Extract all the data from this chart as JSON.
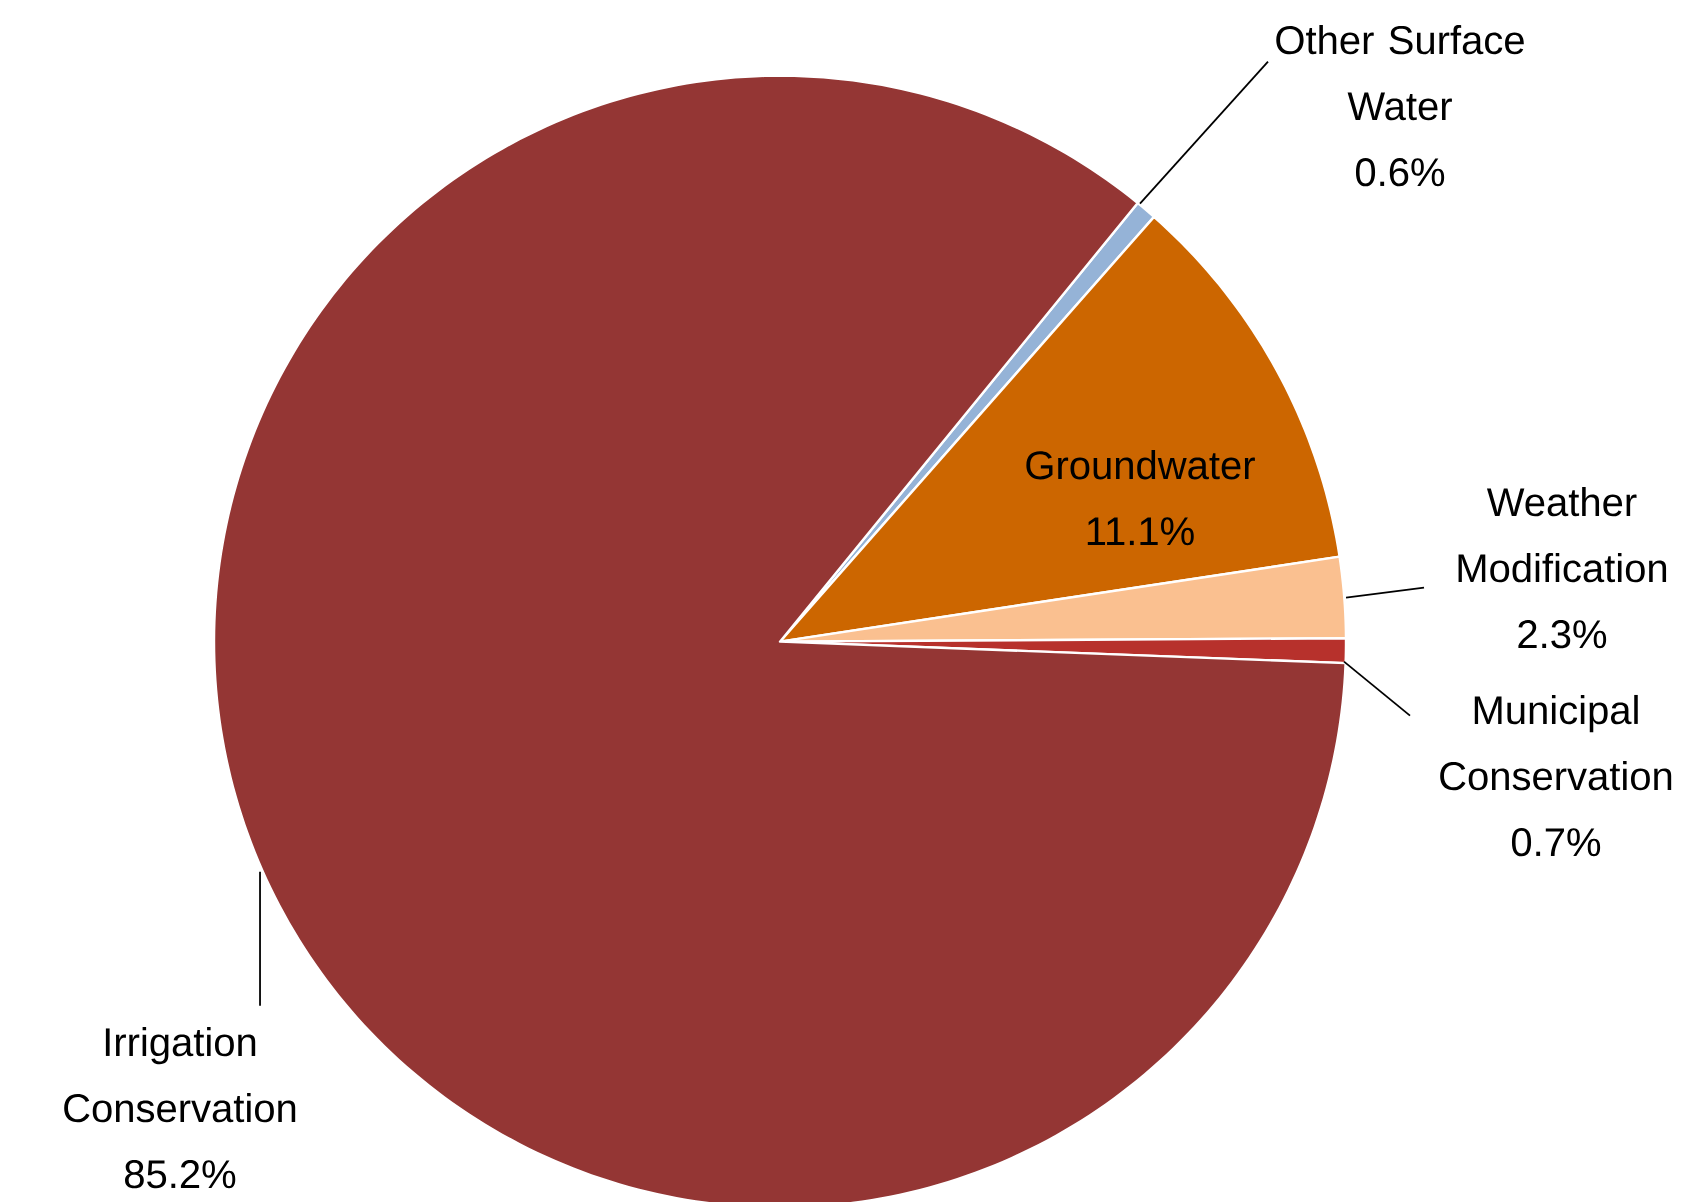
{
  "chart_data": {
    "type": "pie",
    "categories": [
      "Other Surface Water",
      "Groundwater",
      "Weather Modification",
      "Municipal Conservation",
      "Irrigation Conservation"
    ],
    "values": [
      0.6,
      11.1,
      2.3,
      0.7,
      85.2
    ],
    "value_labels": [
      "0.6%",
      "11.1%",
      "2.3%",
      "0.7%",
      "85.2%"
    ],
    "colors": [
      "#95b3d7",
      "#cc6600",
      "#fac090",
      "#b7312c",
      "#943634"
    ]
  }
}
